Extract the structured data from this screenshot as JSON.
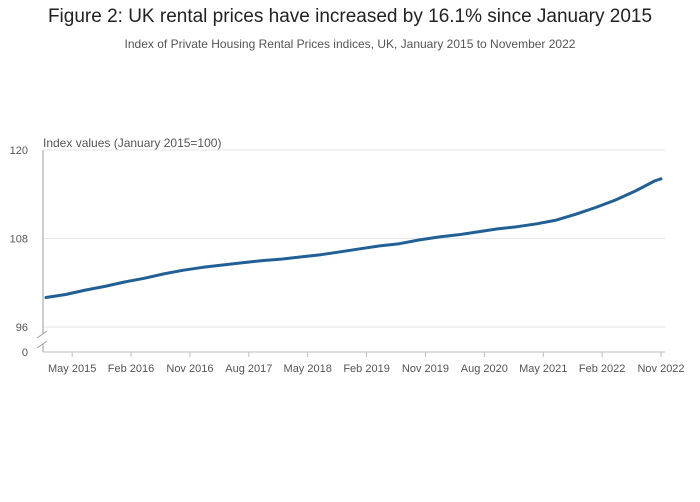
{
  "figure": {
    "title": "Figure 2: UK rental prices have increased by 16.1% since January 2015",
    "subtitle": "Index of Private Housing Rental Prices indices, UK, January 2015 to November 2022"
  },
  "chart_data": {
    "type": "line",
    "title": "Figure 2: UK rental prices have increased by 16.1% since January 2015",
    "subtitle": "Index of Private Housing Rental Prices indices, UK, January 2015 to November 2022",
    "ylabel": "Index values (January 2015=100)",
    "xlabel": "",
    "ylim": [
      96,
      120
    ],
    "y_axis_break": true,
    "y_ticks": [
      "0",
      "96",
      "108",
      "120"
    ],
    "x_ticks": [
      "May 2015",
      "Feb 2016",
      "Nov 2016",
      "Aug 2017",
      "May 2018",
      "Feb 2019",
      "Nov 2019",
      "Aug 2020",
      "May 2021",
      "Feb 2022",
      "Nov 2022"
    ],
    "grid": true,
    "line_color": "#206095",
    "series": [
      {
        "x": [
          "Jan 2015",
          "Apr 2015",
          "Jul 2015",
          "Oct 2015",
          "Jan 2016",
          "Apr 2016",
          "Jul 2016",
          "Oct 2016",
          "Jan 2017",
          "Apr 2017",
          "Jul 2017",
          "Oct 2017",
          "Jan 2018",
          "Apr 2018",
          "Jul 2018",
          "Oct 2018",
          "Jan 2019",
          "Apr 2019",
          "Jul 2019",
          "Oct 2019",
          "Jan 2020",
          "Apr 2020",
          "Jul 2020",
          "Oct 2020",
          "Jan 2021",
          "Apr 2021",
          "Jul 2021",
          "Oct 2021",
          "Jan 2022",
          "Apr 2022",
          "Jul 2022",
          "Oct 2022",
          "Nov 2022"
        ],
        "values": [
          100.0,
          100.4,
          101.0,
          101.5,
          102.1,
          102.6,
          103.2,
          103.7,
          104.1,
          104.4,
          104.7,
          105.0,
          105.2,
          105.5,
          105.8,
          106.2,
          106.6,
          107.0,
          107.3,
          107.8,
          108.2,
          108.5,
          108.9,
          109.3,
          109.6,
          110.0,
          110.5,
          111.3,
          112.2,
          113.2,
          114.4,
          115.8,
          116.1
        ]
      }
    ]
  }
}
